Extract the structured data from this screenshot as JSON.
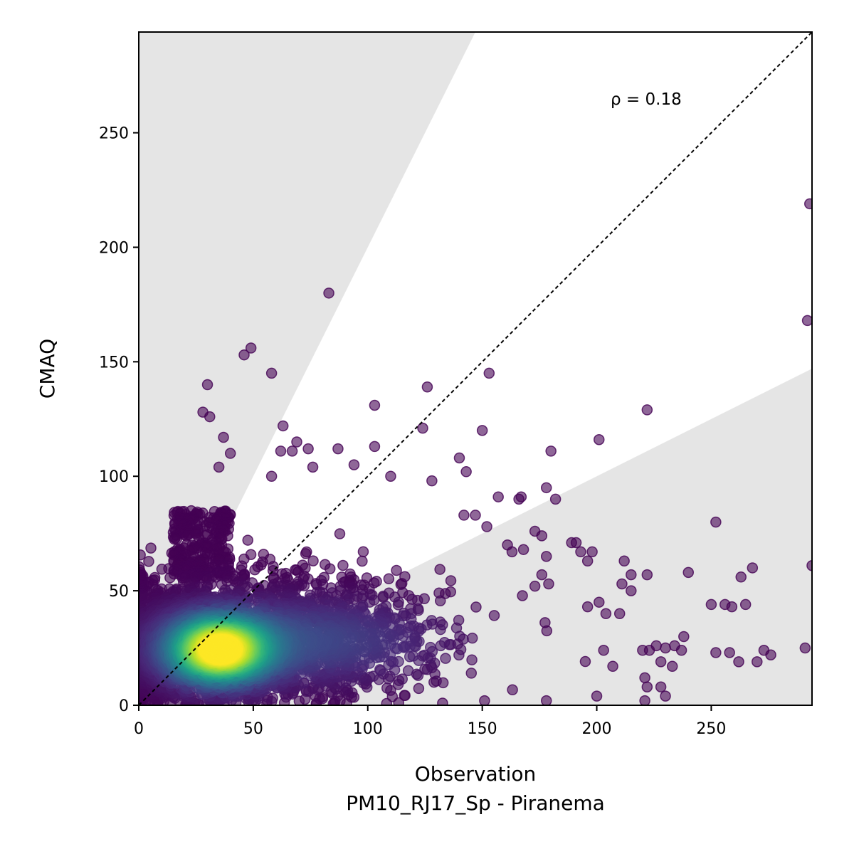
{
  "chart_data": {
    "type": "scatter",
    "xlabel": "Observation",
    "xlabel2": "PM10_RJ17_Sp - Piranema",
    "ylabel": "CMAQ",
    "xlim": [
      0,
      294
    ],
    "ylim": [
      0,
      294
    ],
    "xticks": [
      0,
      50,
      100,
      150,
      200,
      250
    ],
    "yticks": [
      0,
      50,
      100,
      150,
      200,
      250
    ],
    "annotation": "ρ = 0.18",
    "reference_line": "1:1 dotted",
    "shaded_band": "grey outside factor-of-2 region",
    "colormap": "viridis (point density)",
    "grid": false,
    "outliers": [
      [
        83,
        180
      ],
      [
        49,
        156
      ],
      [
        46,
        153
      ],
      [
        58,
        145
      ],
      [
        30,
        140
      ],
      [
        28,
        128
      ],
      [
        31,
        126
      ],
      [
        63,
        122
      ],
      [
        103,
        131
      ],
      [
        126,
        139
      ],
      [
        153,
        145
      ],
      [
        150,
        120
      ],
      [
        124,
        121
      ],
      [
        293,
        219
      ],
      [
        292,
        168
      ],
      [
        222,
        129
      ],
      [
        201,
        116
      ],
      [
        180,
        111
      ],
      [
        140,
        108
      ],
      [
        143,
        102
      ],
      [
        128,
        98
      ],
      [
        157,
        91
      ],
      [
        167,
        91
      ],
      [
        178,
        95
      ],
      [
        182,
        90
      ],
      [
        37,
        117
      ],
      [
        40,
        110
      ],
      [
        35,
        104
      ],
      [
        58,
        100
      ],
      [
        74,
        112
      ],
      [
        76,
        104
      ],
      [
        87,
        112
      ],
      [
        94,
        105
      ],
      [
        103,
        113
      ],
      [
        110,
        100
      ],
      [
        69,
        115
      ],
      [
        67,
        111
      ],
      [
        62,
        111
      ],
      [
        252,
        80
      ],
      [
        294,
        61
      ],
      [
        291,
        25
      ],
      [
        240,
        58
      ],
      [
        263,
        56
      ],
      [
        268,
        60
      ],
      [
        265,
        44
      ],
      [
        259,
        43
      ],
      [
        256,
        44
      ],
      [
        250,
        44
      ],
      [
        222,
        57
      ],
      [
        215,
        57
      ],
      [
        212,
        63
      ],
      [
        215,
        50
      ],
      [
        211,
        53
      ],
      [
        238,
        30
      ],
      [
        234,
        26
      ],
      [
        230,
        25
      ],
      [
        226,
        26
      ],
      [
        223,
        24
      ],
      [
        220,
        24
      ],
      [
        228,
        19
      ],
      [
        221,
        12
      ],
      [
        222,
        8
      ],
      [
        228,
        8
      ],
      [
        230,
        4
      ],
      [
        221,
        2
      ],
      [
        200,
        4
      ],
      [
        178,
        2
      ],
      [
        151,
        2
      ],
      [
        258,
        23
      ],
      [
        252,
        23
      ],
      [
        262,
        19
      ],
      [
        270,
        19
      ],
      [
        276,
        22
      ],
      [
        273,
        24
      ],
      [
        233,
        17
      ],
      [
        237,
        24
      ],
      [
        207,
        17
      ],
      [
        203,
        24
      ],
      [
        198,
        67
      ],
      [
        193,
        67
      ],
      [
        196,
        63
      ],
      [
        191,
        71
      ],
      [
        189,
        71
      ],
      [
        210,
        40
      ],
      [
        204,
        40
      ],
      [
        196,
        43
      ],
      [
        201,
        45
      ],
      [
        179,
        53
      ],
      [
        176,
        57
      ],
      [
        173,
        52
      ],
      [
        166,
        90
      ],
      [
        152,
        78
      ],
      [
        147,
        83
      ],
      [
        142,
        83
      ],
      [
        161,
        70
      ],
      [
        163,
        67
      ],
      [
        168,
        68
      ],
      [
        173,
        76
      ],
      [
        176,
        74
      ],
      [
        178,
        65
      ]
    ]
  }
}
